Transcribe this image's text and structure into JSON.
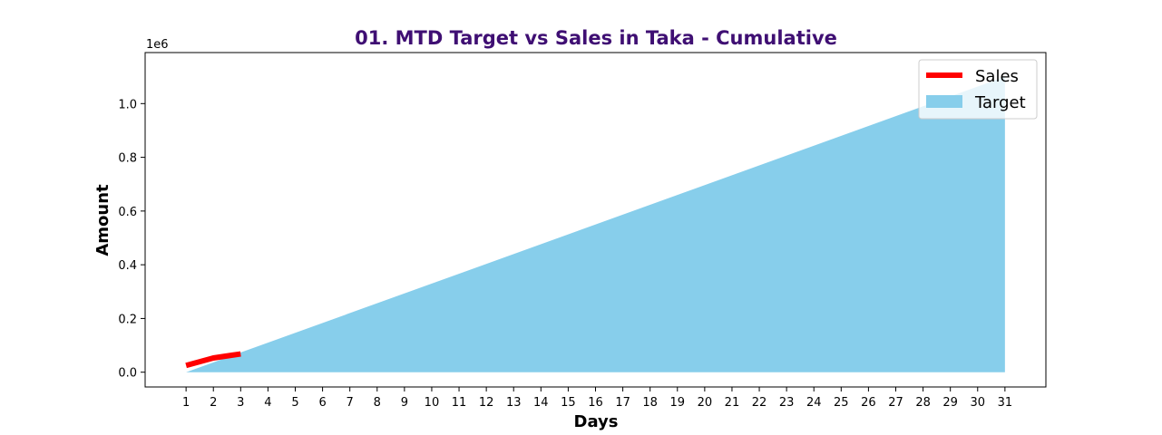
{
  "chart_data": {
    "type": "line",
    "title": "01. MTD Target vs Sales in Taka - Cumulative",
    "xlabel": "Days",
    "ylabel": "Amount",
    "y_offset_text": "1e6",
    "x": [
      1,
      2,
      3,
      4,
      5,
      6,
      7,
      8,
      9,
      10,
      11,
      12,
      13,
      14,
      15,
      16,
      17,
      18,
      19,
      20,
      21,
      22,
      23,
      24,
      25,
      26,
      27,
      28,
      29,
      30,
      31
    ],
    "xlim": [
      -0.5,
      32.5
    ],
    "ylim": [
      -0.055,
      1.19
    ],
    "y_ticks": [
      0.0,
      0.2,
      0.4,
      0.6,
      0.8,
      1.0
    ],
    "y_tick_labels": [
      "0.0",
      "0.2",
      "0.4",
      "0.6",
      "0.8",
      "1.0"
    ],
    "grid": false,
    "legend_position": "top-right",
    "series": [
      {
        "name": "Sales",
        "kind": "line",
        "color": "#ff0000",
        "x": [
          1,
          2,
          3
        ],
        "values": [
          0.025,
          0.053,
          0.068
        ]
      },
      {
        "name": "Target",
        "kind": "area",
        "color": "#87ceeb",
        "x": [
          1,
          31
        ],
        "values": [
          0.0,
          1.1
        ]
      }
    ],
    "colors": {
      "title": "#3f0f73",
      "sales": "#ff0000",
      "target": "#87ceeb"
    }
  }
}
